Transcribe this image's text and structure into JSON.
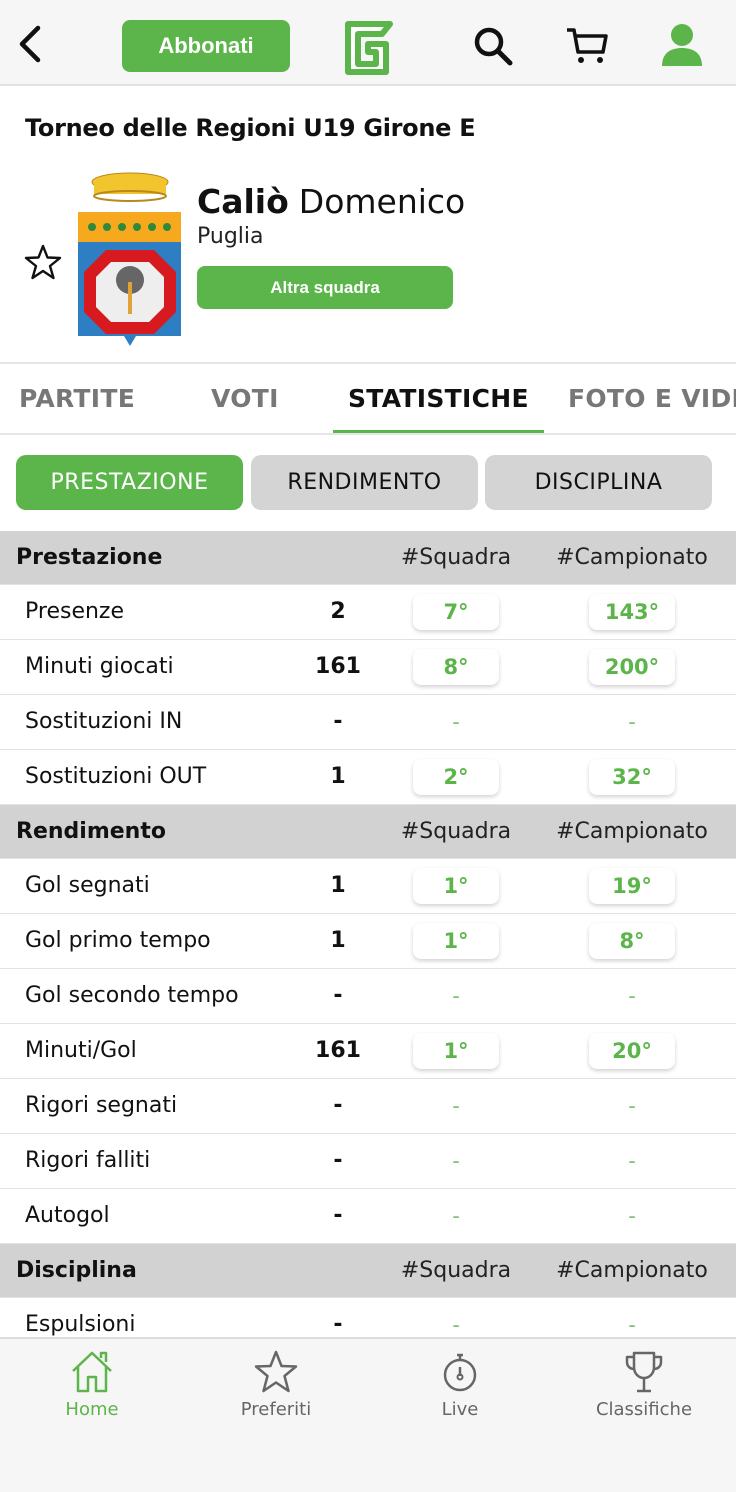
{
  "header": {
    "subscribe_label": "Abbonati",
    "icons": [
      "back-icon",
      "logo",
      "search-icon",
      "cart-icon",
      "user-icon"
    ]
  },
  "colors": {
    "accent": "#5cb54b",
    "section_bg": "#d2d2d2"
  },
  "competition": "Torneo delle Regioni U19  Girone E",
  "player": {
    "last_name": "Caliò",
    "first_name": "Domenico",
    "team": "Puglia",
    "other_team_label": "Altra squadra"
  },
  "tabs": [
    {
      "label": "PARTITE"
    },
    {
      "label": "VOTI"
    },
    {
      "label": "STATISTICHE",
      "active": true
    },
    {
      "label": "FOTO E VIDEO"
    }
  ],
  "subtabs": [
    {
      "label": "PRESTAZIONE",
      "active": true
    },
    {
      "label": "RENDIMENTO"
    },
    {
      "label": "DISCIPLINA"
    }
  ],
  "sections": [
    {
      "title": "Prestazione",
      "col1": "#Squadra",
      "col2": "#Campionato",
      "rows": [
        {
          "label": "Presenze",
          "value": "2",
          "team_rank": "7°",
          "league_rank": "143°"
        },
        {
          "label": "Minuti giocati",
          "value": "161",
          "team_rank": "8°",
          "league_rank": "200°"
        },
        {
          "label": "Sostituzioni IN",
          "value": "-",
          "team_rank": "-",
          "league_rank": "-"
        },
        {
          "label": "Sostituzioni OUT",
          "value": "1",
          "team_rank": "2°",
          "league_rank": "32°"
        }
      ]
    },
    {
      "title": "Rendimento",
      "col1": "#Squadra",
      "col2": "#Campionato",
      "rows": [
        {
          "label": "Gol segnati",
          "value": "1",
          "team_rank": "1°",
          "league_rank": "19°"
        },
        {
          "label": "Gol primo tempo",
          "value": "1",
          "team_rank": "1°",
          "league_rank": "8°"
        },
        {
          "label": "Gol secondo tempo",
          "value": "-",
          "team_rank": "-",
          "league_rank": "-"
        },
        {
          "label": "Minuti/Gol",
          "value": "161",
          "team_rank": "1°",
          "league_rank": "20°"
        },
        {
          "label": "Rigori segnati",
          "value": "-",
          "team_rank": "-",
          "league_rank": "-"
        },
        {
          "label": "Rigori falliti",
          "value": "-",
          "team_rank": "-",
          "league_rank": "-"
        },
        {
          "label": "Autogol",
          "value": "-",
          "team_rank": "-",
          "league_rank": "-"
        }
      ]
    },
    {
      "title": "Disciplina",
      "col1": "#Squadra",
      "col2": "#Campionato",
      "rows": [
        {
          "label": "Espulsioni",
          "value": "-",
          "team_rank": "-",
          "league_rank": "-"
        }
      ]
    }
  ],
  "bottom_nav": [
    {
      "label": "Home",
      "icon": "home-icon",
      "active": true
    },
    {
      "label": "Preferiti",
      "icon": "star-icon"
    },
    {
      "label": "Live",
      "icon": "stopwatch-icon"
    },
    {
      "label": "Classifiche",
      "icon": "trophy-icon"
    }
  ]
}
